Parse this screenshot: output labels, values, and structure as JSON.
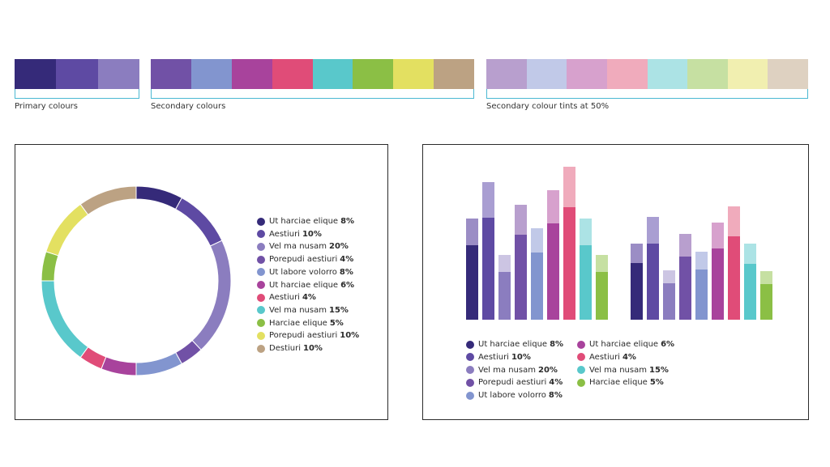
{
  "palette": {
    "primary": {
      "label": "Primary colours",
      "colors": [
        "#352a79",
        "#5e4aa3",
        "#8b7dbf"
      ]
    },
    "secondary": {
      "label": "Secondary colours",
      "colors": [
        "#7151a6",
        "#8295cf",
        "#a8439c",
        "#e04c78",
        "#59c8cb",
        "#8bbf45",
        "#e3e061",
        "#bca283"
      ]
    },
    "tints": {
      "label": "Secondary colour tints at 50%",
      "colors": [
        "#b89fce",
        "#c1c9e8",
        "#d7a1cd",
        "#f0abbc",
        "#ace3e5",
        "#c6e0a2",
        "#f1efb0",
        "#ded1c1"
      ]
    }
  },
  "chart_data": [
    {
      "type": "pie",
      "donut": true,
      "legend_position": "right",
      "slices": [
        {
          "label": "Ut harciae elique",
          "pct_label": "8%",
          "value": 8,
          "color": "#352a79"
        },
        {
          "label": "Aestiuri",
          "pct_label": "10%",
          "value": 10,
          "color": "#5e4aa3"
        },
        {
          "label": "Vel ma nusam",
          "pct_label": "20%",
          "value": 20,
          "color": "#8b7dbf"
        },
        {
          "label": "Porepudi aestiuri",
          "pct_label": "4%",
          "value": 4,
          "color": "#7151a6"
        },
        {
          "label": "Ut labore volorro",
          "pct_label": "8%",
          "value": 8,
          "color": "#8295cf"
        },
        {
          "label": "Ut harciae elique",
          "pct_label": "6%",
          "value": 6,
          "color": "#a8439c"
        },
        {
          "label": "Aestiuri",
          "pct_label": "4%",
          "value": 4,
          "color": "#e04c78"
        },
        {
          "label": "Vel ma nusam",
          "pct_label": "15%",
          "value": 15,
          "color": "#59c8cb"
        },
        {
          "label": "Harciae elique",
          "pct_label": "5%",
          "value": 5,
          "color": "#8bbf45"
        },
        {
          "label": "Porepudi aestiuri",
          "pct_label": "10%",
          "value": 10,
          "color": "#e3e061"
        },
        {
          "label": "Destiuri",
          "pct_label": "10%",
          "value": 10,
          "color": "#bca283"
        }
      ]
    },
    {
      "type": "bar",
      "stacked": true,
      "legend_position": "bottom",
      "groups": 2,
      "series": [
        {
          "label": "Ut harciae elique",
          "pct_label": "8%",
          "color": "#352a79",
          "tint": "#9b8dc5",
          "base": [
            92,
            70
          ],
          "top": [
            33,
            24
          ]
        },
        {
          "label": "Aestiuri",
          "pct_label": "10%",
          "color": "#5e4aa3",
          "tint": "#a99ed2",
          "base": [
            126,
            94
          ],
          "top": [
            44,
            33
          ]
        },
        {
          "label": "Vel ma nusam",
          "pct_label": "20%",
          "color": "#8b7dbf",
          "tint": "#ccc5e3",
          "base": [
            59,
            45
          ],
          "top": [
            21,
            16
          ]
        },
        {
          "label": "Porepudi aestiuri",
          "pct_label": "4%",
          "color": "#7151a6",
          "tint": "#b89fce",
          "base": [
            105,
            78
          ],
          "top": [
            37,
            28
          ]
        },
        {
          "label": "Ut labore volorro",
          "pct_label": "8%",
          "color": "#8295cf",
          "tint": "#c1c9e8",
          "base": [
            83,
            62
          ],
          "top": [
            30,
            22
          ]
        },
        {
          "label": "Ut harciae elique",
          "pct_label": "6%",
          "color": "#a8439c",
          "tint": "#d7a1cd",
          "base": [
            119,
            88
          ],
          "top": [
            41,
            32
          ]
        },
        {
          "label": "Aestiuri",
          "pct_label": "4%",
          "color": "#e04c78",
          "tint": "#f0abbc",
          "base": [
            139,
            103
          ],
          "top": [
            50,
            37
          ]
        },
        {
          "label": "Vel ma nusam",
          "pct_label": "15%",
          "color": "#59c8cb",
          "tint": "#ace3e5",
          "base": [
            92,
            69
          ],
          "top": [
            33,
            25
          ]
        },
        {
          "label": "Harciae elique",
          "pct_label": "5%",
          "color": "#8bbf45",
          "tint": "#c6e0a2",
          "base": [
            59,
            44
          ],
          "top": [
            21,
            16
          ]
        }
      ]
    }
  ]
}
